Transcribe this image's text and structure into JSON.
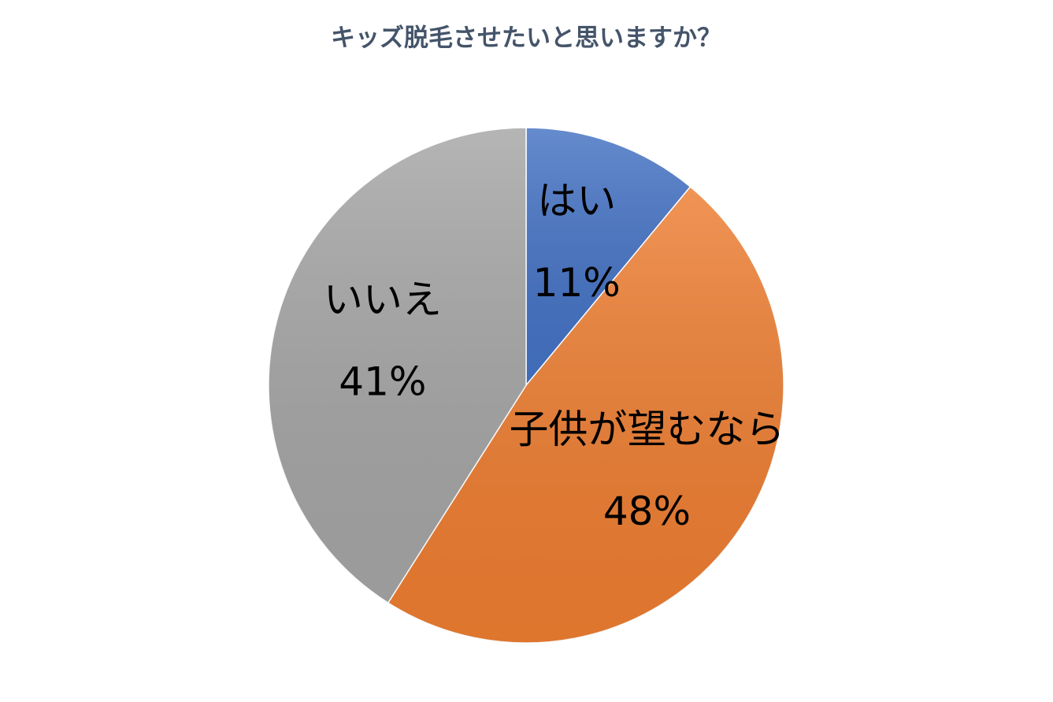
{
  "chart_data": {
    "type": "pie",
    "title": "キッズ脱毛させたいと思いますか？",
    "categories": [
      "はい",
      "子供が望むなら",
      "いいえ"
    ],
    "values": [
      11,
      48,
      41
    ],
    "value_labels": [
      "11%",
      "48%",
      "41%"
    ],
    "colors": [
      "#4472c4",
      "#ed7d31",
      "#a5a5a5"
    ]
  }
}
